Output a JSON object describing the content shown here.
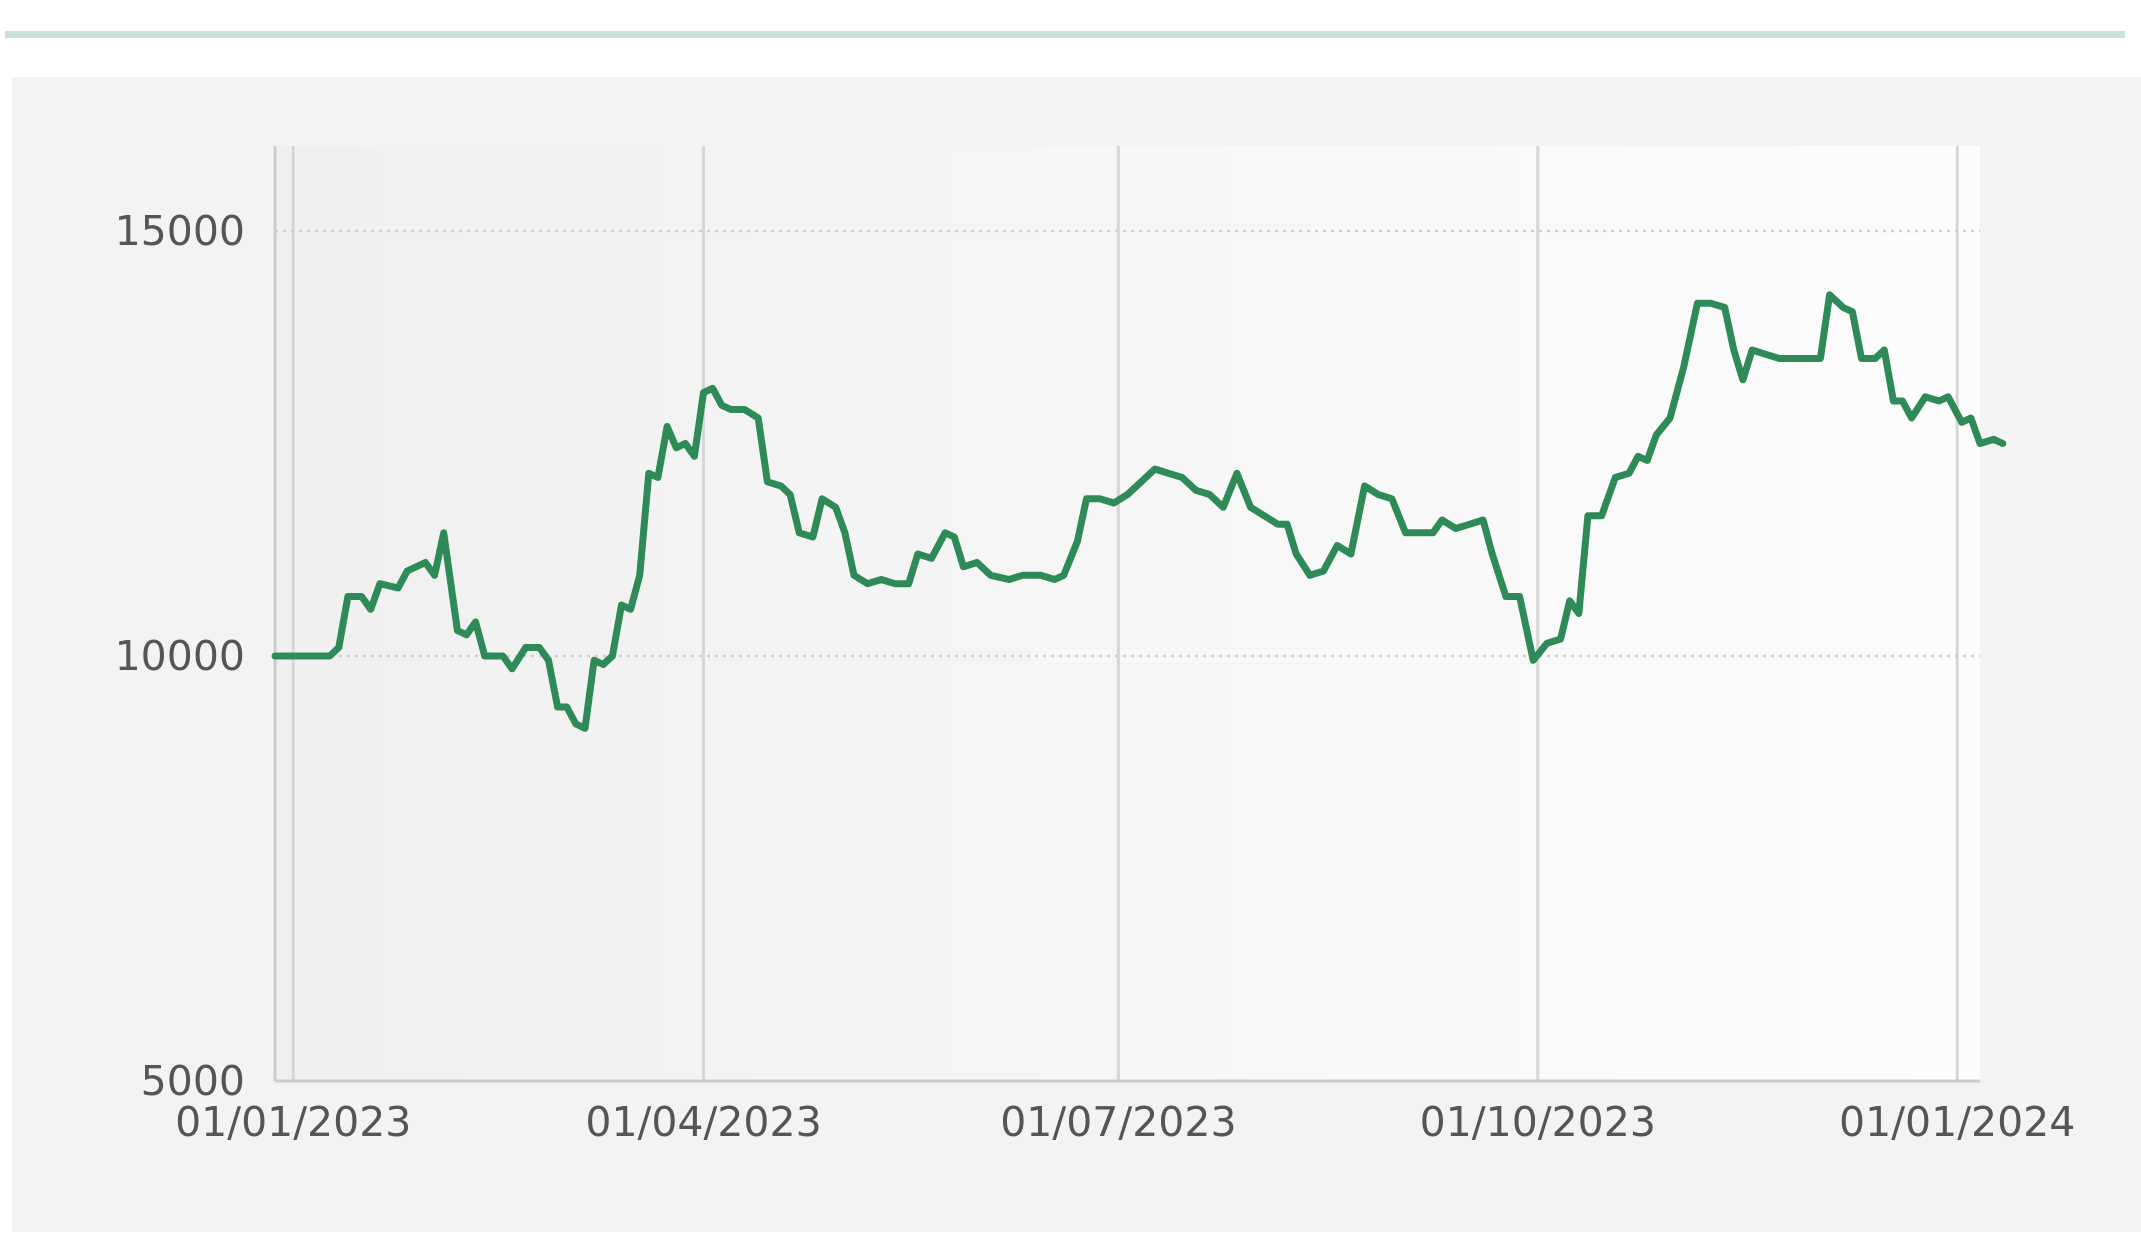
{
  "chart_data": {
    "type": "line",
    "title": "",
    "xlabel": "",
    "ylabel": "",
    "x_range": [
      "2022-12-28",
      "2024-01-06"
    ],
    "ylim": [
      5000,
      16000
    ],
    "y_ticks": [
      5000,
      10000,
      15000
    ],
    "y_tick_labels": [
      "5000",
      "10000",
      "15000"
    ],
    "x_ticks": [
      "2023-01-01",
      "2023-04-01",
      "2023-07-01",
      "2023-10-01",
      "2024-01-01"
    ],
    "x_tick_labels": [
      "01/01/2023",
      "01/04/2023",
      "01/07/2023",
      "01/10/2023",
      "01/01/2024"
    ],
    "grid": {
      "horizontal": "dotted",
      "vertical": "solid"
    },
    "legend": "none",
    "colors": {
      "line": "#2e8b57",
      "plot_background": "#f7f7f7",
      "panel": "#f3f3f3",
      "accent_rule": "#c8e3d5"
    },
    "series": [
      {
        "values": [
          [
            "2022-12-28",
            10000
          ],
          [
            "2023-01-05",
            10000
          ],
          [
            "2023-01-09",
            10000
          ],
          [
            "2023-01-11",
            10100
          ],
          [
            "2023-01-13",
            10700
          ],
          [
            "2023-01-16",
            10700
          ],
          [
            "2023-01-18",
            10550
          ],
          [
            "2023-01-20",
            10850
          ],
          [
            "2023-01-24",
            10800
          ],
          [
            "2023-01-26",
            11000
          ],
          [
            "2023-01-30",
            11100
          ],
          [
            "2023-02-01",
            10950
          ],
          [
            "2023-02-03",
            11450
          ],
          [
            "2023-02-06",
            10300
          ],
          [
            "2023-02-08",
            10250
          ],
          [
            "2023-02-10",
            10400
          ],
          [
            "2023-02-12",
            10000
          ],
          [
            "2023-02-16",
            10000
          ],
          [
            "2023-02-18",
            9850
          ],
          [
            "2023-02-21",
            10100
          ],
          [
            "2023-02-24",
            10100
          ],
          [
            "2023-02-26",
            9950
          ],
          [
            "2023-02-28",
            9400
          ],
          [
            "2023-03-02",
            9400
          ],
          [
            "2023-03-04",
            9200
          ],
          [
            "2023-03-06",
            9150
          ],
          [
            "2023-03-08",
            9950
          ],
          [
            "2023-03-10",
            9900
          ],
          [
            "2023-03-12",
            10000
          ],
          [
            "2023-03-14",
            10600
          ],
          [
            "2023-03-16",
            10550
          ],
          [
            "2023-03-18",
            10950
          ],
          [
            "2023-03-20",
            12150
          ],
          [
            "2023-03-22",
            12100
          ],
          [
            "2023-03-24",
            12700
          ],
          [
            "2023-03-26",
            12450
          ],
          [
            "2023-03-28",
            12500
          ],
          [
            "2023-03-30",
            12350
          ],
          [
            "2023-04-01",
            13100
          ],
          [
            "2023-04-03",
            13150
          ],
          [
            "2023-04-05",
            12950
          ],
          [
            "2023-04-07",
            12900
          ],
          [
            "2023-04-10",
            12900
          ],
          [
            "2023-04-13",
            12800
          ],
          [
            "2023-04-15",
            12050
          ],
          [
            "2023-04-18",
            12000
          ],
          [
            "2023-04-20",
            11900
          ],
          [
            "2023-04-22",
            11450
          ],
          [
            "2023-04-25",
            11400
          ],
          [
            "2023-04-27",
            11850
          ],
          [
            "2023-04-30",
            11750
          ],
          [
            "2023-05-02",
            11450
          ],
          [
            "2023-05-04",
            10950
          ],
          [
            "2023-05-07",
            10850
          ],
          [
            "2023-05-10",
            10900
          ],
          [
            "2023-05-13",
            10850
          ],
          [
            "2023-05-16",
            10850
          ],
          [
            "2023-05-18",
            11200
          ],
          [
            "2023-05-21",
            11150
          ],
          [
            "2023-05-24",
            11450
          ],
          [
            "2023-05-26",
            11400
          ],
          [
            "2023-05-28",
            11050
          ],
          [
            "2023-05-31",
            11100
          ],
          [
            "2023-06-03",
            10950
          ],
          [
            "2023-06-07",
            10900
          ],
          [
            "2023-06-10",
            10950
          ],
          [
            "2023-06-14",
            10950
          ],
          [
            "2023-06-17",
            10900
          ],
          [
            "2023-06-19",
            10950
          ],
          [
            "2023-06-22",
            11350
          ],
          [
            "2023-06-24",
            11850
          ],
          [
            "2023-06-27",
            11850
          ],
          [
            "2023-06-30",
            11800
          ],
          [
            "2023-07-03",
            11900
          ],
          [
            "2023-07-06",
            12050
          ],
          [
            "2023-07-09",
            12200
          ],
          [
            "2023-07-12",
            12150
          ],
          [
            "2023-07-15",
            12100
          ],
          [
            "2023-07-18",
            11950
          ],
          [
            "2023-07-21",
            11900
          ],
          [
            "2023-07-24",
            11750
          ],
          [
            "2023-07-27",
            12150
          ],
          [
            "2023-07-30",
            11750
          ],
          [
            "2023-08-02",
            11650
          ],
          [
            "2023-08-05",
            11550
          ],
          [
            "2023-08-07",
            11550
          ],
          [
            "2023-08-09",
            11200
          ],
          [
            "2023-08-12",
            10950
          ],
          [
            "2023-08-15",
            11000
          ],
          [
            "2023-08-18",
            11300
          ],
          [
            "2023-08-21",
            11200
          ],
          [
            "2023-08-24",
            12000
          ],
          [
            "2023-08-27",
            11900
          ],
          [
            "2023-08-30",
            11850
          ],
          [
            "2023-09-02",
            11450
          ],
          [
            "2023-09-05",
            11450
          ],
          [
            "2023-09-08",
            11450
          ],
          [
            "2023-09-10",
            11600
          ],
          [
            "2023-09-13",
            11500
          ],
          [
            "2023-09-16",
            11550
          ],
          [
            "2023-09-19",
            11600
          ],
          [
            "2023-09-21",
            11200
          ],
          [
            "2023-09-24",
            10700
          ],
          [
            "2023-09-27",
            10700
          ],
          [
            "2023-09-30",
            9950
          ],
          [
            "2023-10-03",
            10150
          ],
          [
            "2023-10-06",
            10200
          ],
          [
            "2023-10-08",
            10650
          ],
          [
            "2023-10-10",
            10500
          ],
          [
            "2023-10-12",
            11650
          ],
          [
            "2023-10-15",
            11650
          ],
          [
            "2023-10-18",
            12100
          ],
          [
            "2023-10-21",
            12150
          ],
          [
            "2023-10-23",
            12350
          ],
          [
            "2023-10-25",
            12300
          ],
          [
            "2023-10-27",
            12600
          ],
          [
            "2023-10-30",
            12800
          ],
          [
            "2023-11-02",
            13400
          ],
          [
            "2023-11-05",
            14150
          ],
          [
            "2023-11-08",
            14150
          ],
          [
            "2023-11-11",
            14100
          ],
          [
            "2023-11-13",
            13600
          ],
          [
            "2023-11-15",
            13250
          ],
          [
            "2023-11-17",
            13600
          ],
          [
            "2023-11-20",
            13550
          ],
          [
            "2023-11-23",
            13500
          ],
          [
            "2023-11-26",
            13500
          ],
          [
            "2023-11-29",
            13500
          ],
          [
            "2023-12-02",
            13500
          ],
          [
            "2023-12-04",
            14250
          ],
          [
            "2023-12-07",
            14100
          ],
          [
            "2023-12-09",
            14050
          ],
          [
            "2023-12-11",
            13500
          ],
          [
            "2023-12-14",
            13500
          ],
          [
            "2023-12-16",
            13600
          ],
          [
            "2023-12-18",
            13000
          ],
          [
            "2023-12-20",
            13000
          ],
          [
            "2023-12-22",
            12800
          ],
          [
            "2023-12-25",
            13050
          ],
          [
            "2023-12-28",
            13000
          ],
          [
            "2023-12-30",
            13050
          ],
          [
            "2024-01-02",
            12750
          ],
          [
            "2024-01-04",
            12800
          ],
          [
            "2024-01-06",
            12500
          ],
          [
            "2024-01-09",
            12550
          ],
          [
            "2024-01-11",
            12500
          ]
        ]
      }
    ]
  }
}
